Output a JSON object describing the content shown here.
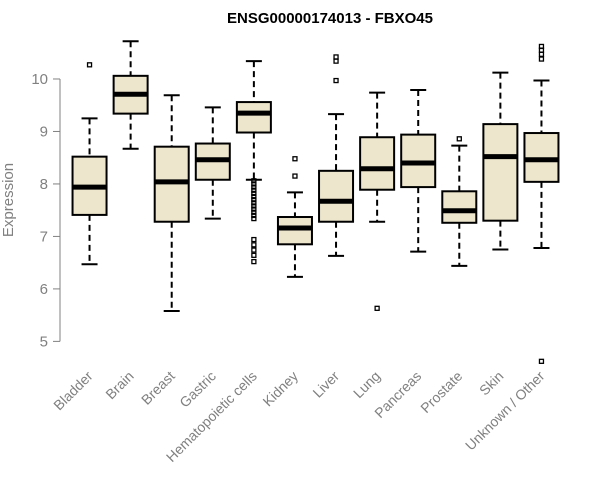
{
  "chart_data": {
    "type": "box",
    "title": "ENSG00000174013 - FBXO45",
    "xlabel": "",
    "ylabel": "Expression",
    "ylim": [
      4.55,
      10.8
    ],
    "yticks": [
      5,
      6,
      7,
      8,
      9,
      10
    ],
    "box_color": "#ede6cc",
    "categories": [
      "Bladder",
      "Brain",
      "Breast",
      "Gastric",
      "Hematopoietic cells",
      "Kidney",
      "Liver",
      "Lung",
      "Pancreas",
      "Prostate",
      "Skin",
      "Unknown / Other"
    ],
    "boxes": [
      {
        "name": "Bladder",
        "whisker_low": 6.47,
        "q1": 7.41,
        "median": 7.94,
        "q3": 8.52,
        "whisker_high": 9.25,
        "outliers": [
          10.27
        ]
      },
      {
        "name": "Brain",
        "whisker_low": 8.67,
        "q1": 9.34,
        "median": 9.71,
        "q3": 10.06,
        "whisker_high": 10.72,
        "outliers": []
      },
      {
        "name": "Breast",
        "whisker_low": 5.58,
        "q1": 7.28,
        "median": 8.04,
        "q3": 8.71,
        "whisker_high": 9.69,
        "outliers": []
      },
      {
        "name": "Gastric",
        "whisker_low": 7.34,
        "q1": 8.08,
        "median": 8.46,
        "q3": 8.77,
        "whisker_high": 9.46,
        "outliers": []
      },
      {
        "name": "Hematopoietic cells",
        "whisker_low": 8.08,
        "q1": 8.98,
        "median": 9.35,
        "q3": 9.56,
        "whisker_high": 10.34,
        "outliers": [
          8.06,
          8.0,
          7.94,
          7.88,
          7.82,
          7.76,
          7.7,
          7.64,
          7.58,
          7.52,
          7.46,
          7.4,
          7.34,
          6.94,
          6.84,
          6.74,
          6.64,
          6.52
        ]
      },
      {
        "name": "Kidney",
        "whisker_low": 6.23,
        "q1": 6.85,
        "median": 7.16,
        "q3": 7.37,
        "whisker_high": 7.84,
        "outliers": [
          8.15,
          8.48
        ]
      },
      {
        "name": "Liver",
        "whisker_low": 6.63,
        "q1": 7.28,
        "median": 7.67,
        "q3": 8.25,
        "whisker_high": 9.33,
        "outliers": [
          9.97,
          10.34,
          10.42
        ]
      },
      {
        "name": "Lung",
        "whisker_low": 7.28,
        "q1": 7.89,
        "median": 8.29,
        "q3": 8.89,
        "whisker_high": 9.74,
        "outliers": [
          5.63
        ]
      },
      {
        "name": "Pancreas",
        "whisker_low": 6.71,
        "q1": 7.94,
        "median": 8.4,
        "q3": 8.94,
        "whisker_high": 9.79,
        "outliers": []
      },
      {
        "name": "Prostate",
        "whisker_low": 6.44,
        "q1": 7.26,
        "median": 7.49,
        "q3": 7.86,
        "whisker_high": 8.73,
        "outliers": [
          8.86
        ]
      },
      {
        "name": "Skin",
        "whisker_low": 6.75,
        "q1": 7.3,
        "median": 8.52,
        "q3": 9.14,
        "whisker_high": 10.12,
        "outliers": []
      },
      {
        "name": "Unknown / Other",
        "whisker_low": 6.78,
        "q1": 8.04,
        "median": 8.46,
        "q3": 8.97,
        "whisker_high": 9.97,
        "outliers": [
          4.62,
          10.38,
          10.47,
          10.55,
          10.62
        ]
      }
    ]
  }
}
